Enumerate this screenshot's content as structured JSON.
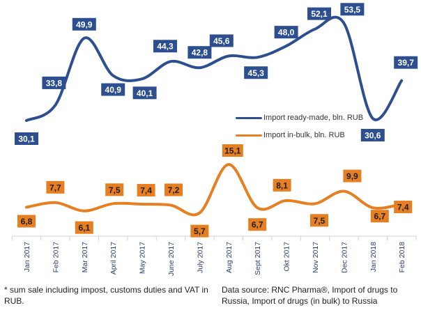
{
  "chart_data": {
    "type": "line",
    "categories": [
      "Jan 2017",
      "Feb 2017",
      "Mar 2017",
      "April 2017",
      "May 2017",
      "June 2017",
      "July 2017",
      "Aug 2017",
      "Sept 2017",
      "Okt 2017",
      "Nov 2017",
      "Dec 2017",
      "Jan 2018",
      "Feb 2018"
    ],
    "series": [
      {
        "name": "Import ready-made, bln. RUB",
        "color": "#2e4f8f",
        "values": [
          30.1,
          33.8,
          49.9,
          40.9,
          40.1,
          44.3,
          42.8,
          45.6,
          45.3,
          48.0,
          52.1,
          53.5,
          30.6,
          39.7
        ],
        "labels": [
          "30,1",
          "33,8",
          "49,9",
          "40,9",
          "40,1",
          "44,3",
          "42,8",
          "45,6",
          "45,3",
          "48,0",
          "52,1",
          "53,5",
          "30,6",
          "39,7"
        ]
      },
      {
        "name": "Import in-bulk, bln. RUB",
        "color": "#e67e22",
        "values": [
          6.8,
          7.7,
          6.1,
          7.5,
          7.4,
          7.2,
          5.7,
          15.1,
          6.7,
          8.1,
          7.5,
          9.9,
          6.7,
          7.4
        ],
        "labels": [
          "6,8",
          "7,7",
          "6,1",
          "7,5",
          "7,4",
          "7,2",
          "5,7",
          "15,1",
          "6,7",
          "8,1",
          "7,5",
          "9,9",
          "6,7",
          "7,4"
        ]
      }
    ]
  },
  "footnote": "* sum sale including impost, customs duties and VAT in RUB.",
  "source": "Data source: RNC Pharma®, Import of drugs to Russia, Import of drugs (in bulk) to Russia"
}
